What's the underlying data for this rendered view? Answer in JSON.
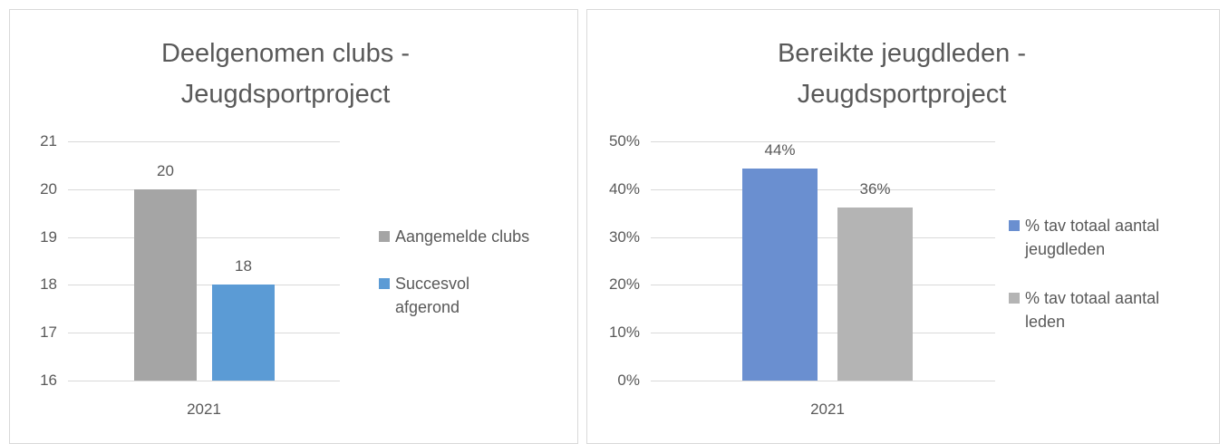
{
  "chart_data": [
    {
      "type": "bar",
      "title": "Deelgenomen clubs - Jeugdsportproject",
      "categories": [
        "2021"
      ],
      "series": [
        {
          "name": "Aangemelde clubs",
          "color": "#a5a5a5",
          "values": [
            20
          ]
        },
        {
          "name": "Succesvol afgerond",
          "color": "#5b9bd5",
          "values": [
            18
          ]
        }
      ],
      "ylim": [
        16,
        21
      ],
      "yticks": [
        16,
        17,
        18,
        19,
        20,
        21
      ],
      "grid": true,
      "legend": "right"
    },
    {
      "type": "bar",
      "title": "Bereikte jeugdleden - Jeugdsportproject",
      "categories": [
        "2021"
      ],
      "series": [
        {
          "name": "% tav totaal aantal jeugdleden",
          "color": "#6a8fd0",
          "values": [
            44.3
          ],
          "value_labels": [
            "44%"
          ]
        },
        {
          "name": "% tav totaal aantal leden",
          "color": "#b4b4b4",
          "values": [
            36.2
          ],
          "value_labels": [
            "36%"
          ]
        }
      ],
      "ylim": [
        0,
        50
      ],
      "yticks": [
        {
          "value": 0,
          "label": "0%"
        },
        {
          "value": 10,
          "label": "10%"
        },
        {
          "value": 20,
          "label": "20%"
        },
        {
          "value": 30,
          "label": "30%"
        },
        {
          "value": 40,
          "label": "40%"
        },
        {
          "value": 50,
          "label": "50%"
        }
      ],
      "grid": true,
      "legend": "right"
    }
  ]
}
